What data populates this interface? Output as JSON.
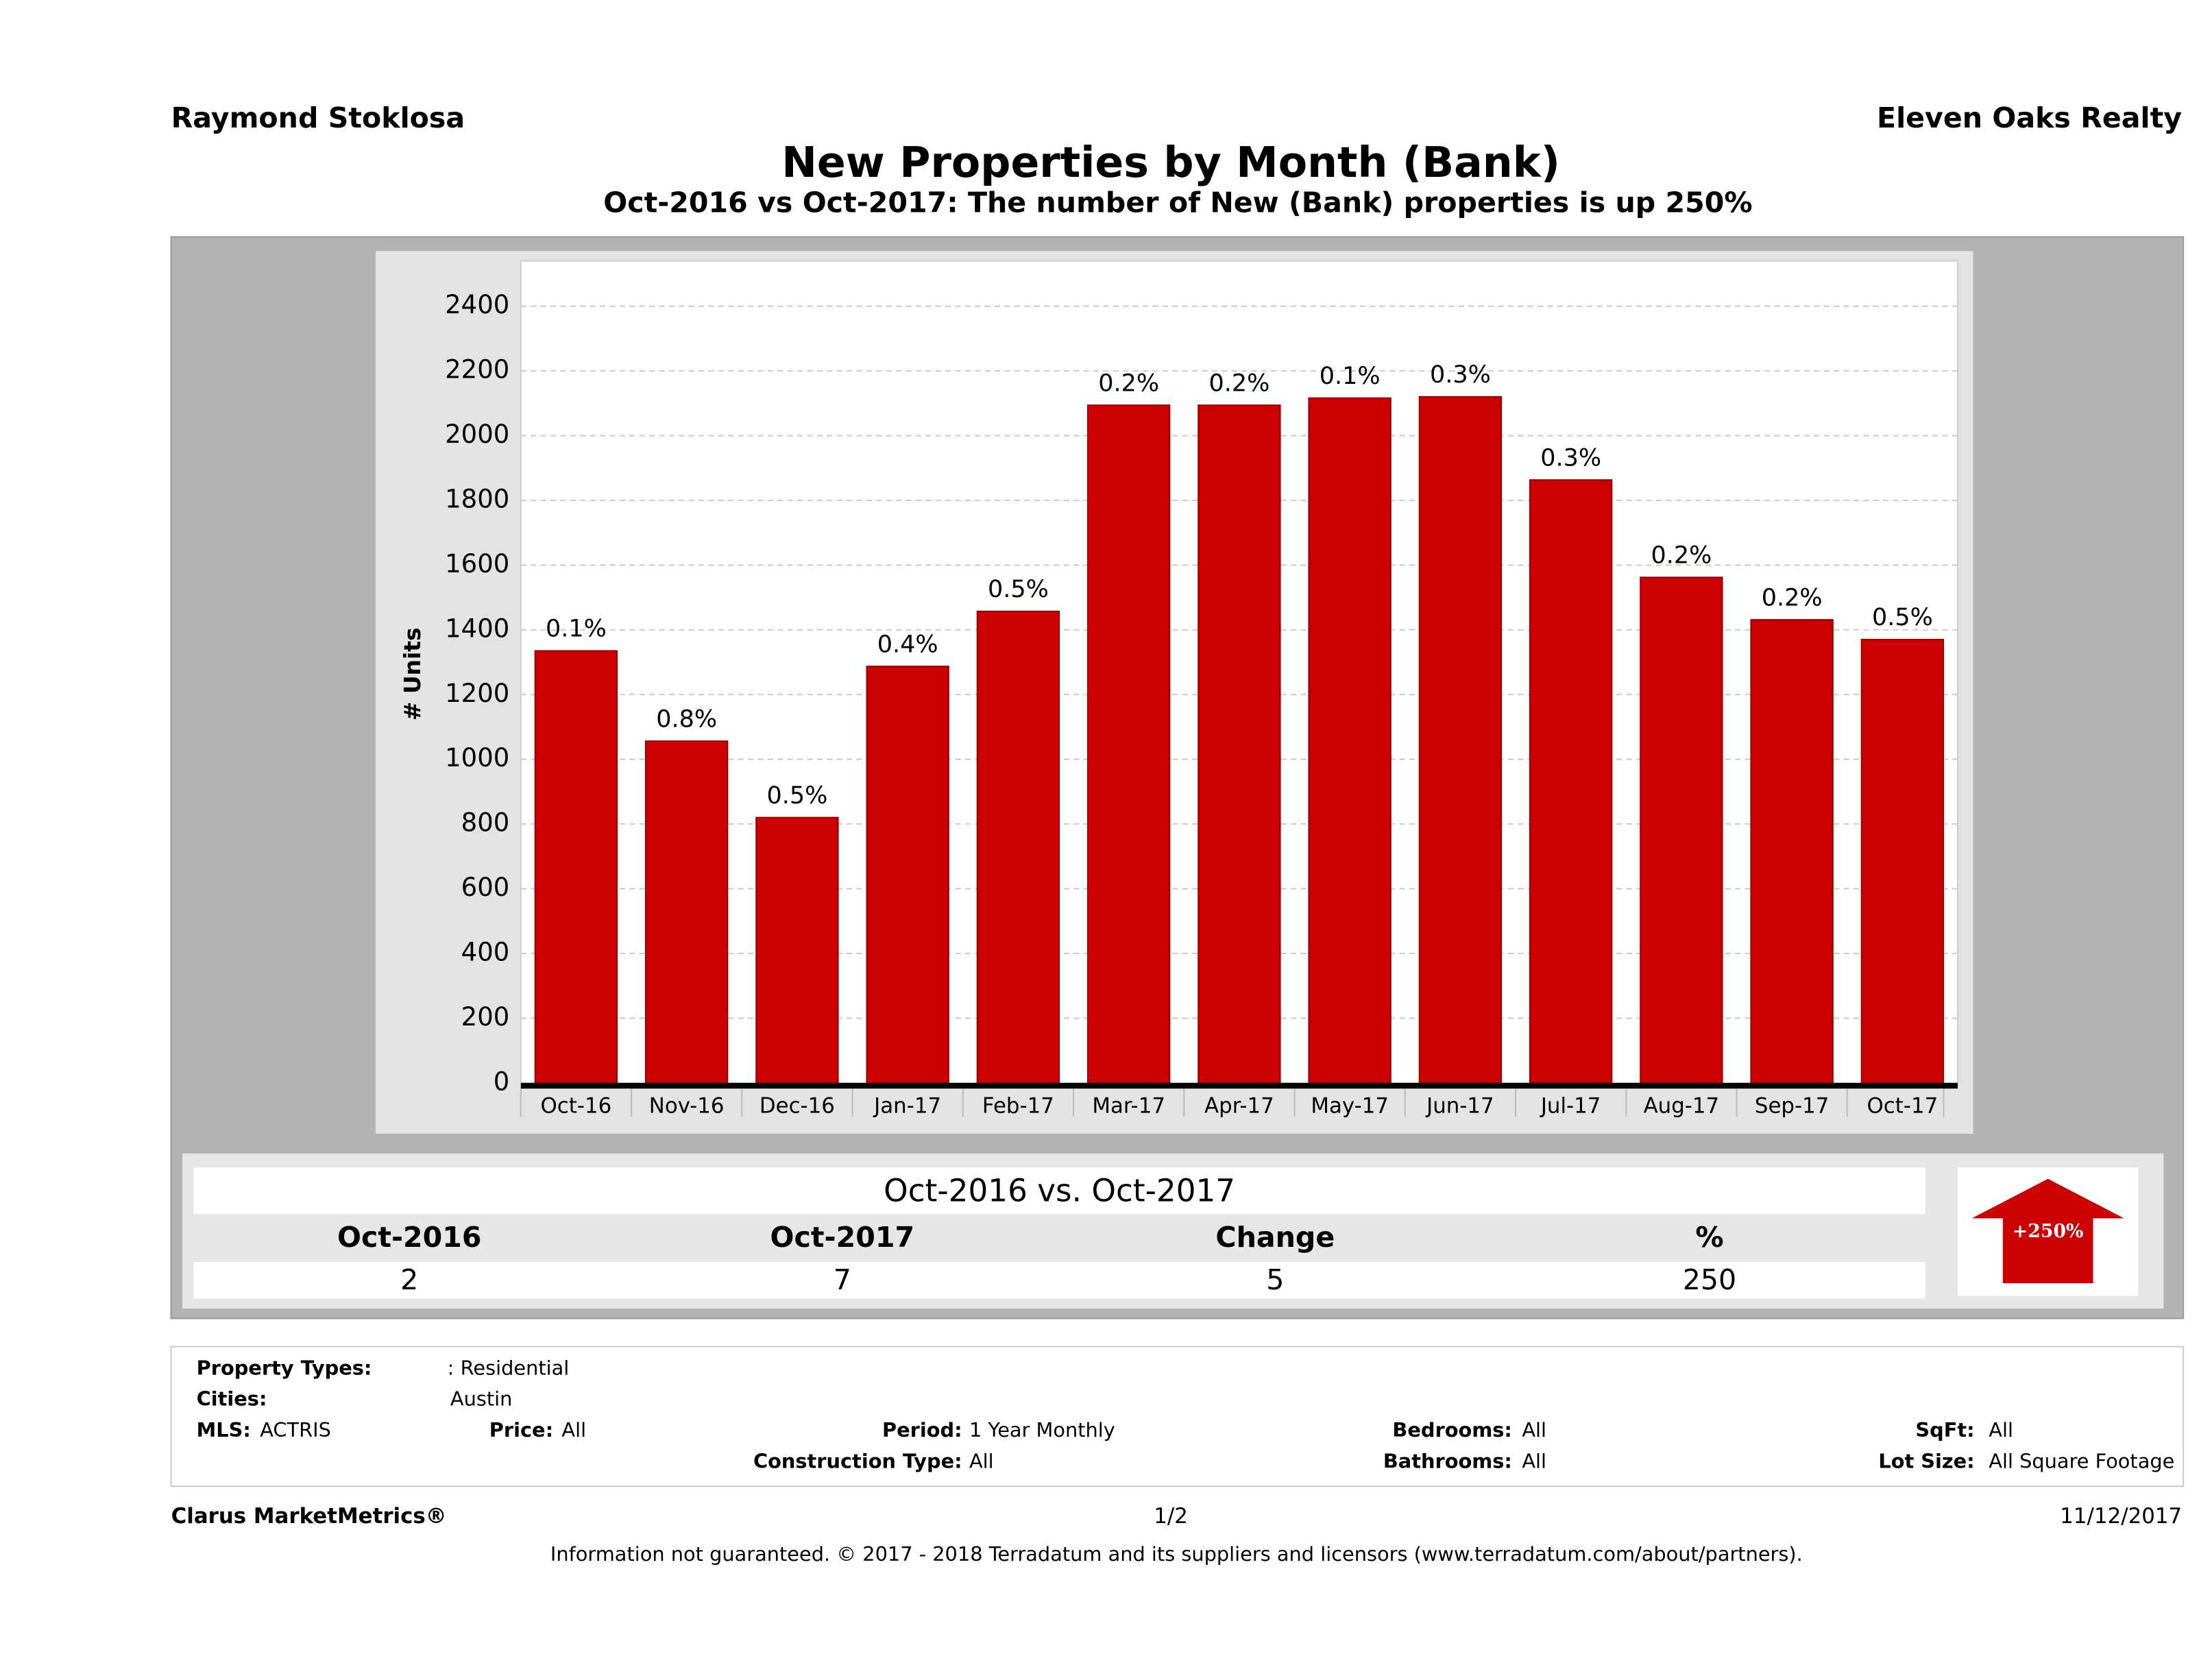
{
  "header": {
    "left": "Raymond Stoklosa",
    "right": "Eleven Oaks Realty"
  },
  "chart_data": {
    "type": "bar",
    "title": "New Properties by Month (Bank)",
    "subtitle": "Oct-2016 vs Oct-2017: The number of New (Bank)  properties is up 250%",
    "y_label": "# Units",
    "categories": [
      "Oct-16",
      "Nov-16",
      "Dec-16",
      "Jan-17",
      "Feb-17",
      "Mar-17",
      "Apr-17",
      "May-17",
      "Jun-17",
      "Jul-17",
      "Aug-17",
      "Sep-17",
      "Oct-17"
    ],
    "values": [
      1335,
      1056,
      820,
      1287,
      1457,
      2094,
      2094,
      2116,
      2120,
      1863,
      1562,
      1431,
      1370
    ],
    "annotations": [
      "0.1%",
      "0.8%",
      "0.5%",
      "0.4%",
      "0.5%",
      "0.2%",
      "0.2%",
      "0.1%",
      "0.3%",
      "0.3%",
      "0.2%",
      "0.2%",
      "0.5%"
    ],
    "color": "#cc0000",
    "ylim": [
      0,
      2540
    ],
    "yticks": [
      0,
      200,
      400,
      600,
      800,
      1000,
      1200,
      1400,
      1600,
      1800,
      2000,
      2200,
      2400
    ],
    "grid": true
  },
  "summary": {
    "title": "Oct-2016 vs. Oct-2017",
    "headers": [
      "Oct-2016",
      "Oct-2017",
      "Change",
      "%"
    ],
    "values": [
      2,
      7,
      5,
      250
    ],
    "badge": "+250%"
  },
  "filters": [
    {
      "label": "Property Types:",
      "value": ": Residential"
    },
    {
      "label": "Cities:",
      "value": "Austin"
    },
    {
      "label": "MLS:",
      "value": "ACTRIS"
    },
    {
      "label": "Price:",
      "value": "All"
    },
    {
      "label": "Period:",
      "value": "1 Year Monthly"
    },
    {
      "label": "Construction Type:",
      "value": "All"
    },
    {
      "label": "Bedrooms:",
      "value": "All"
    },
    {
      "label": "Bathrooms:",
      "value": "All"
    },
    {
      "label": "SqFt:",
      "value": "All"
    },
    {
      "label": "Lot Size:",
      "value": "All Square Footage"
    }
  ],
  "footer": {
    "left": "Clarus MarketMetrics®",
    "center": "1/2",
    "right": "11/12/2017",
    "disclaimer": "Information not guaranteed. © 2017 - 2018 Terradatum and its suppliers and licensors (www.terradatum.com/about/partners)."
  }
}
